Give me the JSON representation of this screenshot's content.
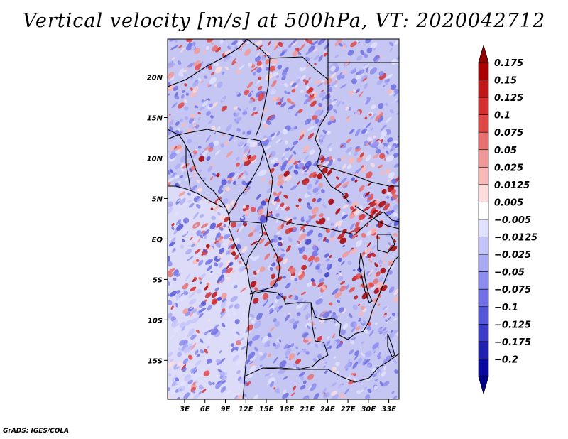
{
  "title": "Vertical velocity [m/s] at 500hPa, VT: 2020042712",
  "credit": "GrADS: IGES/COLA",
  "map": {
    "lat_labels": [
      "20N",
      "15N",
      "10N",
      "5N",
      "EQ",
      "5S",
      "10S",
      "15S"
    ],
    "lat_values": [
      20,
      15,
      10,
      5,
      0,
      -5,
      -10,
      -15
    ],
    "lon_labels": [
      "3E",
      "6E",
      "9E",
      "12E",
      "15E",
      "18E",
      "21E",
      "24E",
      "27E",
      "30E",
      "33E"
    ],
    "lon_values": [
      3,
      6,
      9,
      12,
      15,
      18,
      21,
      24,
      27,
      30,
      33
    ],
    "lon_range": [
      0.5,
      34.5
    ],
    "lat_range": [
      -19.8,
      24.7
    ]
  },
  "colorbar": {
    "labels": [
      "0.175",
      "0.15",
      "0.125",
      "0.1",
      "0.075",
      "0.05",
      "0.025",
      "0.0125",
      "0.005",
      "−0.005",
      "−0.0125",
      "−0.025",
      "−0.05",
      "−0.075",
      "−0.1",
      "−0.125",
      "−0.175",
      "−0.2"
    ],
    "colors": [
      "#a80000",
      "#c01818",
      "#d43030",
      "#e04848",
      "#e87070",
      "#f09898",
      "#f8b8b8",
      "#fcdcdc",
      "#ffffff",
      "#e0e0ff",
      "#c4c4fa",
      "#aaaaf4",
      "#8c8cee",
      "#7070e4",
      "#5656d8",
      "#3c3cc8",
      "#2020b0",
      "#0808a0"
    ],
    "top_arrow_color": "#960000",
    "bottom_arrow_color": "#00008c"
  },
  "field_colors": {
    "ocean_base": "#dcdcf8",
    "land_base": "#c6c6f2",
    "strong_pos": "#c01818",
    "strong_neg": "#3c3cc8"
  }
}
